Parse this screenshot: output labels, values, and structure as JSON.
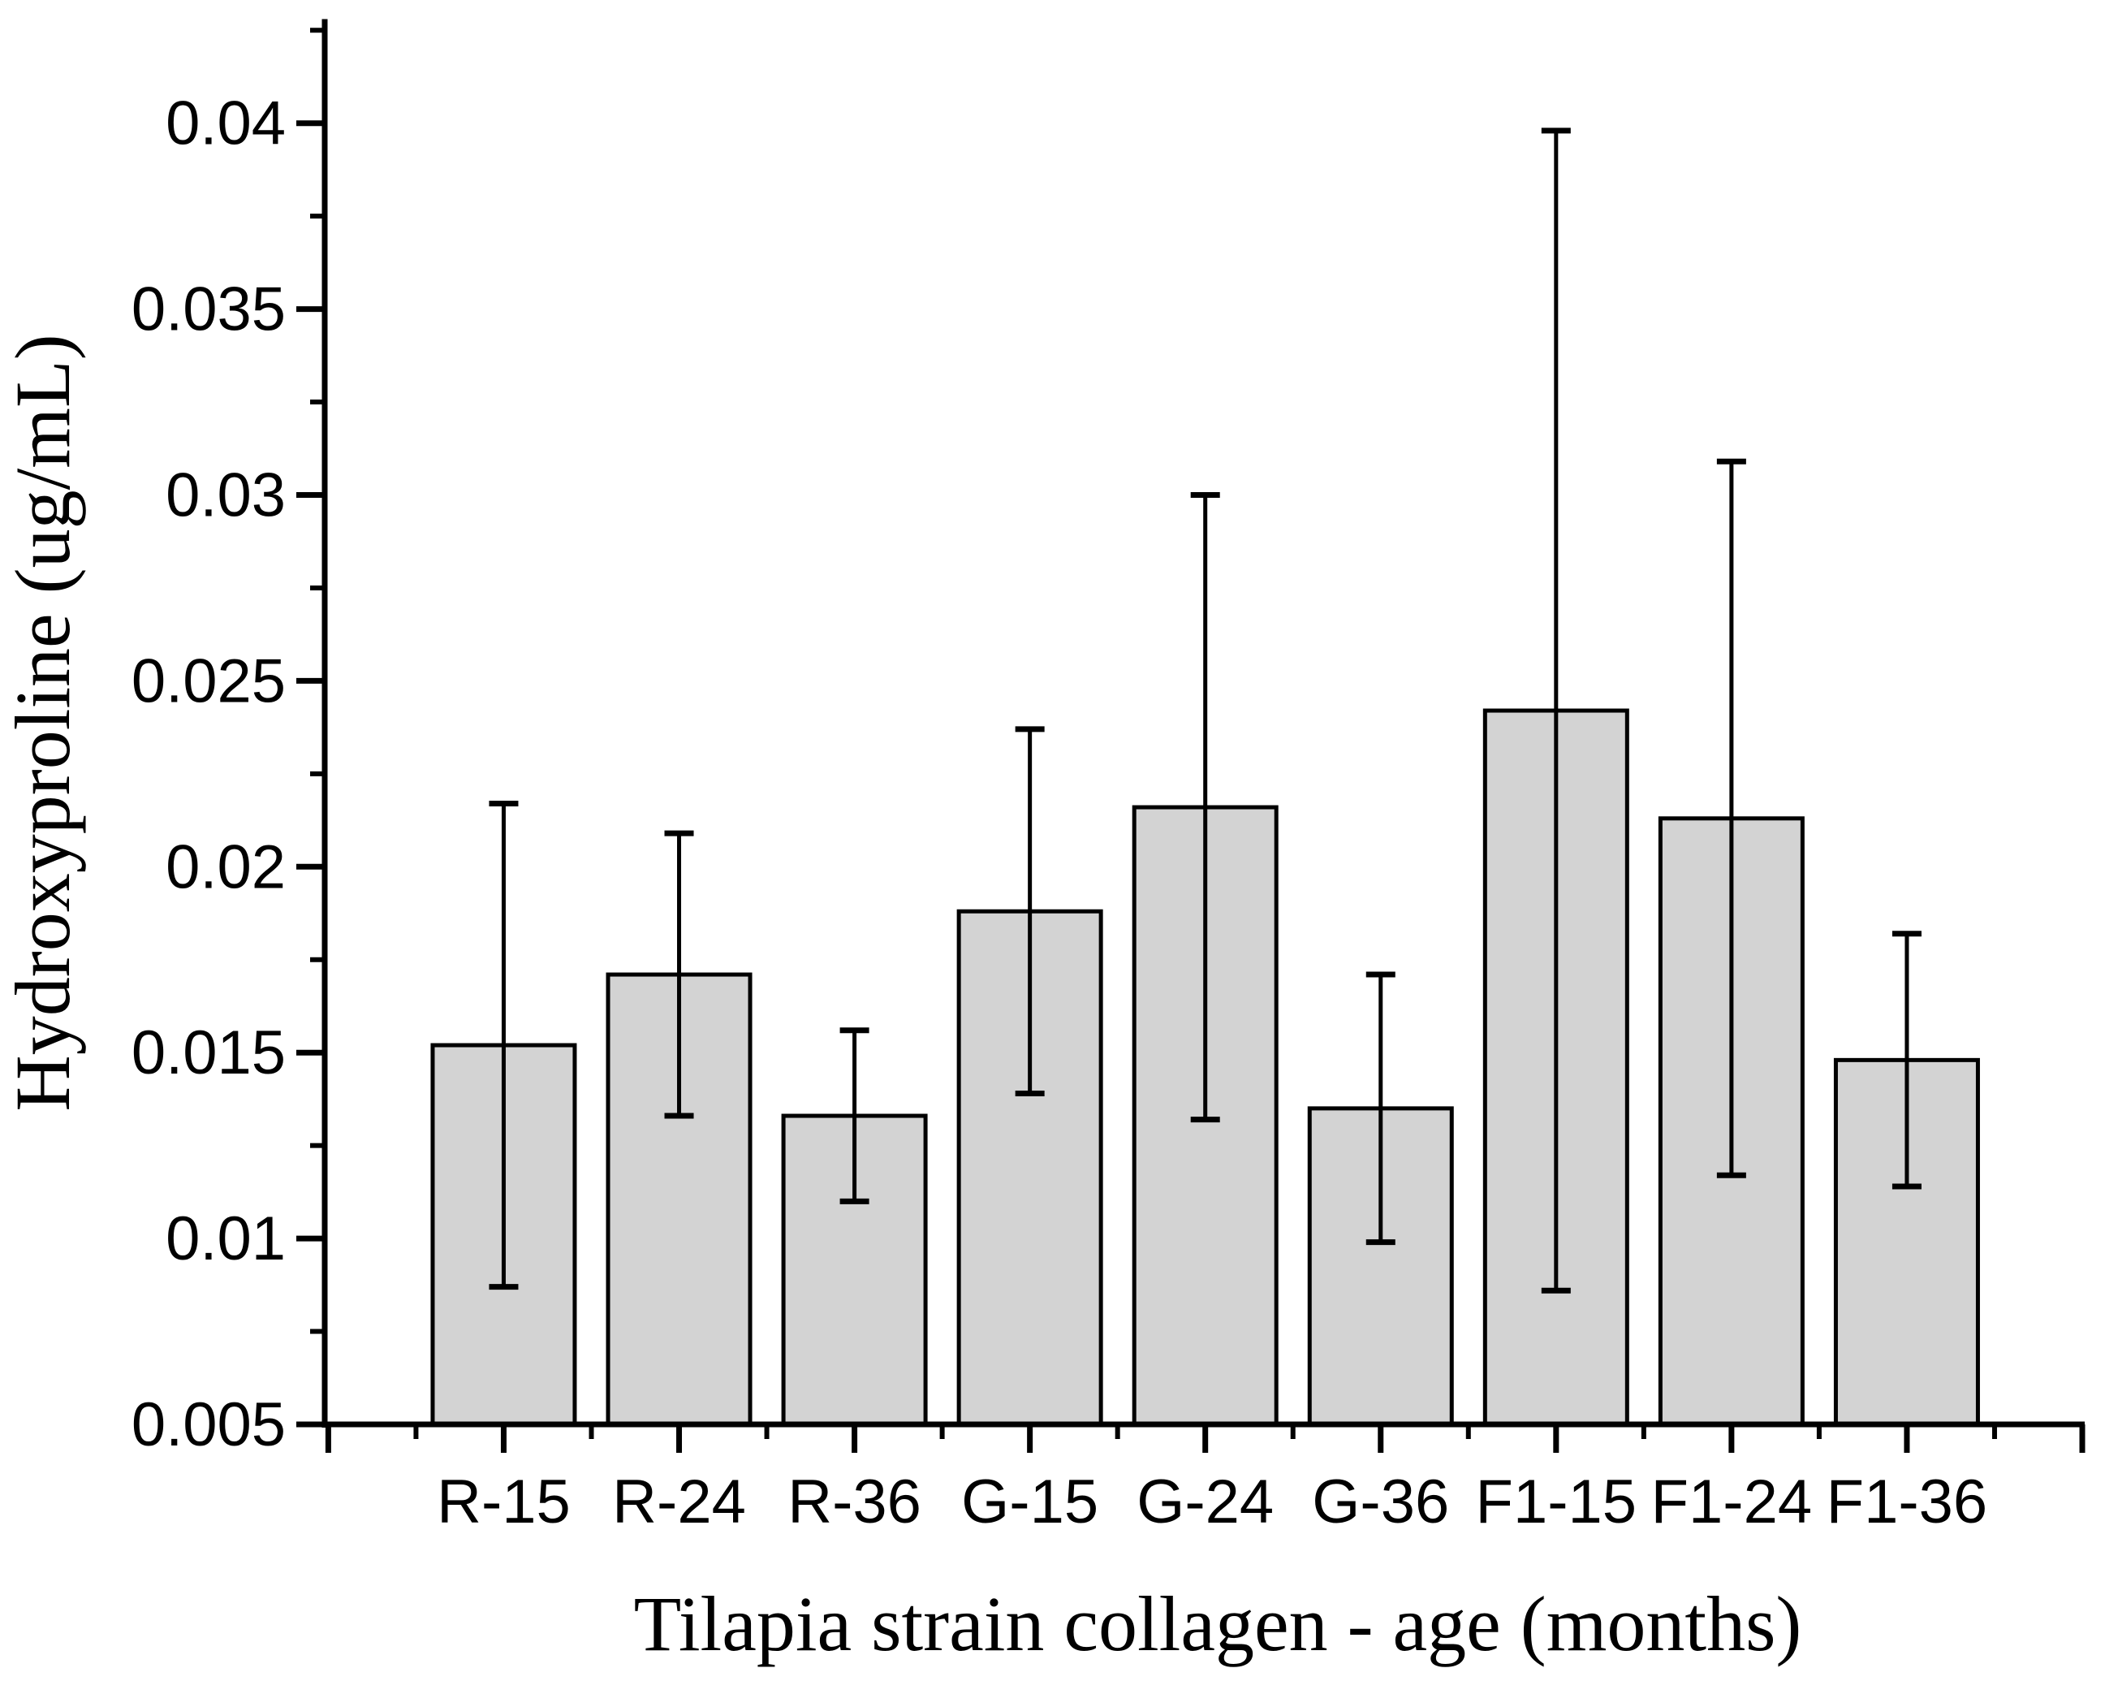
{
  "chart_data": {
    "type": "bar",
    "title": "",
    "xlabel": "Tilapia strain collagen - age (months)",
    "ylabel": "Hydroxyproline (ug/mL)",
    "categories": [
      "R-15",
      "R-24",
      "R-36",
      "G-15",
      "G-24",
      "G-36",
      "F1-15",
      "F1-24",
      "F1-36"
    ],
    "values": [
      0.0152,
      0.0171,
      0.0133,
      0.0188,
      0.0216,
      0.0135,
      0.0242,
      0.0213,
      0.0148
    ],
    "errors": [
      0.0065,
      0.0038,
      0.0023,
      0.0049,
      0.0084,
      0.0036,
      0.0156,
      0.0096,
      0.0034
    ],
    "error_style": "symmetric-caps",
    "ylim": [
      0.005,
      0.0428
    ],
    "yticks": [
      0.005,
      0.01,
      0.015,
      0.02,
      0.025,
      0.03,
      0.035,
      0.04
    ],
    "ytick_labels": [
      "0.005",
      "0.01",
      "0.015",
      "0.02",
      "0.025",
      "0.03",
      "0.035",
      "0.04"
    ],
    "ytick_minor_step": 0.0025,
    "grid": false,
    "legend": null,
    "bar_color": "#d3d3d3",
    "bar_edge_color": "#000000",
    "axis_color": "#000000",
    "text_color": "#000000",
    "background_color": "#ffffff"
  }
}
